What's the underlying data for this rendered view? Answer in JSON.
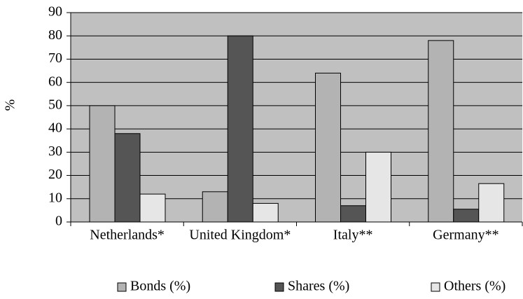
{
  "chart_data": {
    "type": "bar",
    "y_label": "%",
    "categories": [
      "Netherlands*",
      "United Kingdom*",
      "Italy**",
      "Germany**"
    ],
    "series": [
      {
        "name": "Bonds (%)",
        "color": "#b3b3b3",
        "values": [
          50,
          13,
          64,
          78
        ]
      },
      {
        "name": "Shares (%)",
        "color": "#555555",
        "values": [
          38,
          80,
          7,
          5.5
        ]
      },
      {
        "name": "Others (%)",
        "color": "#e6e6e6",
        "values": [
          12,
          8,
          30,
          16.5
        ]
      }
    ],
    "ylim": [
      0,
      90
    ],
    "yticks": [
      0,
      10,
      20,
      30,
      40,
      50,
      60,
      70,
      80,
      90
    ],
    "grid": true,
    "legend": "bottom"
  }
}
